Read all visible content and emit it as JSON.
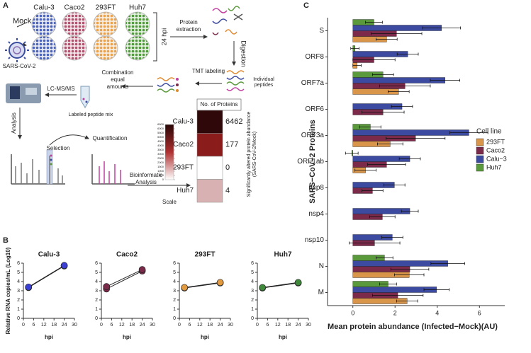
{
  "panels": {
    "a": "A",
    "b": "B",
    "c": "C"
  },
  "panel_a": {
    "cell_lines": [
      "Calu-3",
      "Caco2",
      "293FT",
      "Huh7"
    ],
    "mock": "Mock",
    "virus": "SARS-CoV-2",
    "hpi": "24 hpi",
    "protein_extraction": [
      "Protein",
      "extraction"
    ],
    "digestion": "Digestion",
    "individual_peptides": [
      "Individual",
      "peptides"
    ],
    "tmt": "TMT labeling",
    "combination": [
      "Combination",
      "equal",
      "amounts"
    ],
    "labeled_mix": "Labeled peptide mix",
    "lcms": "LC-MS/MS",
    "analysis": "Analysis",
    "selection": "Selection",
    "quantification": "Quantification",
    "bioinformatic": [
      "Bioinformatic",
      "Analysis"
    ],
    "heatmap": {
      "header": "No. of Proteins",
      "side_label": [
        "Significantly altered protein abundance",
        "(SARS-CoV-2/Mock)"
      ],
      "rows": [
        {
          "label": "Calu-3",
          "value": 6462,
          "color": "#2f0909"
        },
        {
          "label": "Caco2",
          "value": 177,
          "color": "#8a1c1c"
        },
        {
          "label": "293FT",
          "value": 0,
          "color": "#ffffff"
        },
        {
          "label": "Huh7",
          "value": 4,
          "color": "#d8b2b2"
        }
      ],
      "scale": {
        "title": "Scale",
        "lim": [
          0,
          6500
        ],
        "ticks": [
          6500,
          6000,
          5500,
          5000,
          4500,
          4000,
          3500,
          3000,
          2500,
          2000,
          1500,
          1000,
          500,
          0
        ]
      }
    }
  },
  "chart_data": [
    {
      "type": "line",
      "title": "Calu-3",
      "ylabel": "Relative RNA copies/mL (Log10)",
      "xlabel": "hpi",
      "x": [
        3,
        24
      ],
      "xlim": [
        0,
        30
      ],
      "xticks": [
        0,
        6,
        12,
        18,
        24,
        30
      ],
      "ylim": [
        0,
        6
      ],
      "yticks": [
        0,
        1,
        2,
        3,
        4,
        5,
        6
      ],
      "series": [
        {
          "color": "#3a3fd6",
          "values": [
            3.35,
            5.7
          ]
        },
        {
          "color": "#3a3fd6",
          "values": [
            3.4,
            5.75
          ]
        }
      ]
    },
    {
      "type": "line",
      "title": "Caco2",
      "xlabel": "hpi",
      "x": [
        3,
        24
      ],
      "xlim": [
        0,
        30
      ],
      "xticks": [
        0,
        6,
        12,
        18,
        24,
        30
      ],
      "ylim": [
        0,
        6
      ],
      "yticks": [
        0,
        1,
        2,
        3,
        4,
        5,
        6
      ],
      "series": [
        {
          "color": "#7b2a4a",
          "values": [
            3.2,
            5.15
          ]
        },
        {
          "color": "#7b2a4a",
          "values": [
            3.45,
            5.3
          ]
        }
      ]
    },
    {
      "type": "line",
      "title": "293FT",
      "xlabel": "hpi",
      "x": [
        3,
        24
      ],
      "xlim": [
        0,
        30
      ],
      "xticks": [
        0,
        6,
        12,
        18,
        24,
        30
      ],
      "ylim": [
        0,
        6
      ],
      "yticks": [
        0,
        1,
        2,
        3,
        4,
        5,
        6
      ],
      "series": [
        {
          "color": "#e39a3e",
          "values": [
            3.3,
            3.85
          ]
        },
        {
          "color": "#e39a3e",
          "values": [
            3.35,
            3.9
          ]
        }
      ]
    },
    {
      "type": "line",
      "title": "Huh7",
      "xlabel": "hpi",
      "x": [
        3,
        24
      ],
      "xlim": [
        0,
        30
      ],
      "xticks": [
        0,
        6,
        12,
        18,
        24,
        30
      ],
      "ylim": [
        0,
        6
      ],
      "yticks": [
        0,
        1,
        2,
        3,
        4,
        5,
        6
      ],
      "series": [
        {
          "color": "#3f8a3a",
          "values": [
            3.3,
            3.85
          ]
        },
        {
          "color": "#3f8a3a",
          "values": [
            3.35,
            3.9
          ]
        }
      ]
    },
    {
      "type": "bar",
      "orientation": "horizontal",
      "ylabel": "SARS−CoV−2 Proteins",
      "xlabel": "Mean protein abundance (Infected−Mock)(AU)",
      "legend_title": "Cell line",
      "legend": "right",
      "categories": [
        "S",
        "ORF8",
        "ORF7a",
        "ORF6",
        "ORF3a",
        "ORF1ab",
        "nsp8",
        "nsp4",
        "nsp10",
        "N",
        "M"
      ],
      "xlim": [
        -1.2,
        7.2
      ],
      "xticks": [
        0,
        2,
        4,
        6
      ],
      "series": [
        {
          "name": "293FT",
          "color": "#d9964b",
          "values": [
            1.6,
            0.2,
            2.17,
            null,
            1.77,
            0.6,
            null,
            null,
            null,
            2.67,
            2.57
          ],
          "errors": [
            0.5,
            0.2,
            0.5,
            null,
            0.6,
            0.5,
            null,
            null,
            null,
            0.7,
            0.5
          ]
        },
        {
          "name": "Caco2",
          "color": "#7b2a4a",
          "values": [
            2.07,
            1.0,
            2.47,
            1.43,
            2.97,
            1.6,
            0.93,
            1.4,
            1.03,
            2.7,
            2.13
          ],
          "errors": [
            1.2,
            1.0,
            1.2,
            1.0,
            1.4,
            0.9,
            0.5,
            0.6,
            1.2,
            0.9,
            1.2
          ]
        },
        {
          "name": "Calu−3",
          "color": "#3c4aa0",
          "values": [
            4.2,
            2.6,
            4.37,
            2.33,
            5.5,
            2.7,
            1.97,
            2.7,
            1.87,
            4.5,
            3.97
          ],
          "errors": [
            0.9,
            0.5,
            0.7,
            0.5,
            0.9,
            0.5,
            0.5,
            0.4,
            0.5,
            0.8,
            0.6
          ]
        },
        {
          "name": "Huh7",
          "color": "#5a9a3c",
          "values": [
            1.0,
            0.1,
            1.43,
            null,
            0.83,
            -0.05,
            null,
            null,
            null,
            1.5,
            1.67
          ],
          "errors": [
            0.4,
            0.2,
            0.5,
            null,
            0.5,
            0.3,
            null,
            null,
            null,
            0.4,
            0.4
          ]
        }
      ]
    }
  ]
}
